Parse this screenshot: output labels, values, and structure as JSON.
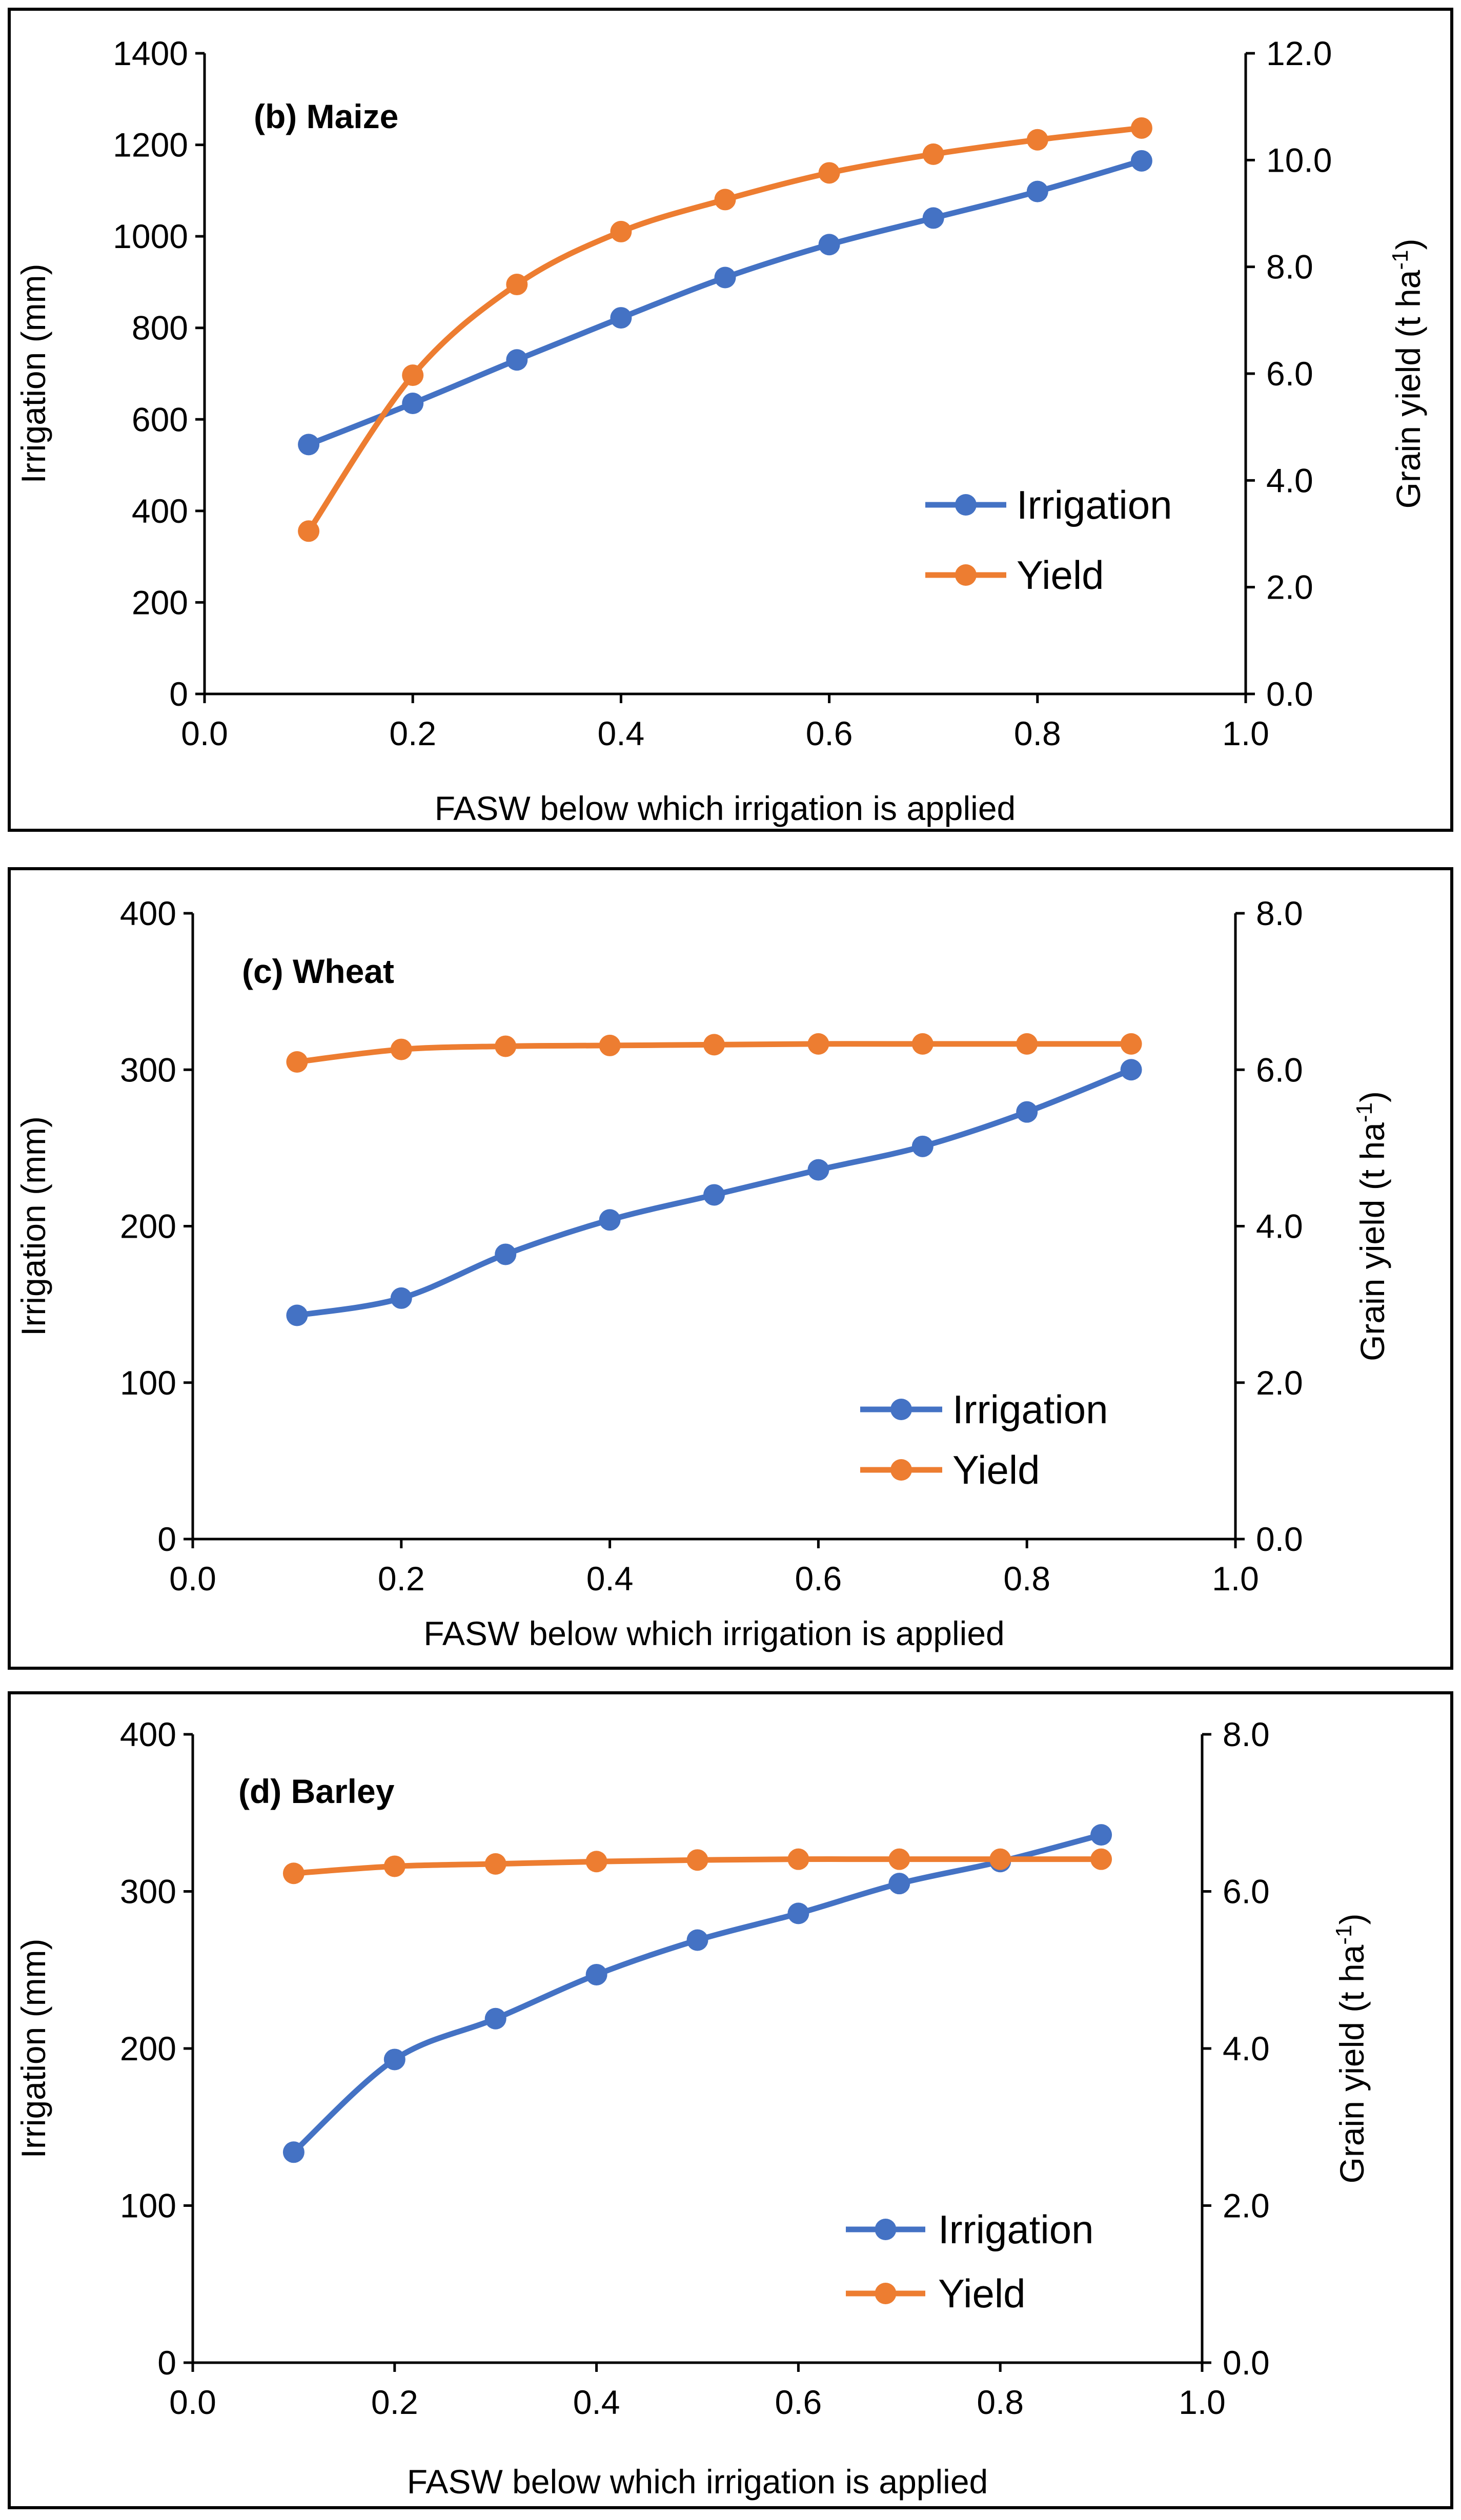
{
  "colors": {
    "irrigation": "#4472C4",
    "yield": "#ED7D31"
  },
  "chart_data": [
    {
      "type": "line",
      "title": "(b) Maize",
      "xlabel": "FASW below which irrigation is applied",
      "ylabel": "Irrigation (mm)",
      "y2label_main": "Grain yield (t ha",
      "y2label_sup": "-1",
      "y2label_close": ")",
      "xlim": [
        0,
        1
      ],
      "ylim": [
        0,
        1400
      ],
      "y2lim": [
        0,
        12
      ],
      "x_ticks": [
        "0.0",
        "0.2",
        "0.4",
        "0.6",
        "0.8",
        "1.0"
      ],
      "y_ticks": [
        "0",
        "200",
        "400",
        "600",
        "800",
        "1000",
        "1200",
        "1400"
      ],
      "y2_ticks": [
        "0.0",
        "2.0",
        "4.0",
        "6.0",
        "8.0",
        "10.0",
        "12.0"
      ],
      "x": [
        0.1,
        0.2,
        0.3,
        0.4,
        0.5,
        0.6,
        0.7,
        0.8,
        0.9
      ],
      "series": [
        {
          "name": "Irrigation",
          "axis": "left",
          "values": [
            545,
            635,
            730,
            822,
            910,
            982,
            1040,
            1098,
            1165
          ]
        },
        {
          "name": "Yield",
          "axis": "right",
          "values": [
            3.05,
            5.97,
            7.67,
            8.66,
            9.26,
            9.76,
            10.11,
            10.38,
            10.6
          ]
        }
      ]
    },
    {
      "type": "line",
      "title": "(c) Wheat",
      "xlabel": "FASW below which irrigation is applied",
      "ylabel": "Irrigation (mm)",
      "y2label_main": "Grain yield (t ha",
      "y2label_sup": "-1",
      "y2label_close": ")",
      "xlim": [
        0,
        1
      ],
      "ylim": [
        0,
        400
      ],
      "y2lim": [
        0,
        8
      ],
      "x_ticks": [
        "0.0",
        "0.2",
        "0.4",
        "0.6",
        "0.8",
        "1.0"
      ],
      "y_ticks": [
        "0",
        "100",
        "200",
        "300",
        "400"
      ],
      "y2_ticks": [
        "0.0",
        "2.0",
        "4.0",
        "6.0",
        "8.0"
      ],
      "x": [
        0.1,
        0.2,
        0.3,
        0.4,
        0.5,
        0.6,
        0.7,
        0.8,
        0.9
      ],
      "series": [
        {
          "name": "Irrigation",
          "axis": "left",
          "values": [
            143,
            154,
            182,
            204,
            220,
            236,
            251,
            273,
            300
          ]
        },
        {
          "name": "Yield",
          "axis": "right",
          "values": [
            6.1,
            6.26,
            6.3,
            6.31,
            6.32,
            6.33,
            6.33,
            6.33,
            6.33
          ]
        }
      ]
    },
    {
      "type": "line",
      "title": "(d) Barley",
      "xlabel": "FASW below which irrigation is applied",
      "ylabel": "Irrigation (mm)",
      "y2label_main": "Grain yield (t ha",
      "y2label_sup": "-1",
      "y2label_close": ")",
      "xlim": [
        0,
        1
      ],
      "ylim": [
        0,
        400
      ],
      "y2lim": [
        0,
        8
      ],
      "x_ticks": [
        "0.0",
        "0.2",
        "0.4",
        "0.6",
        "0.8",
        "1.0"
      ],
      "y_ticks": [
        "0",
        "100",
        "200",
        "300",
        "400"
      ],
      "y2_ticks": [
        "0.0",
        "2.0",
        "4.0",
        "6.0",
        "8.0"
      ],
      "x": [
        0.1,
        0.2,
        0.3,
        0.4,
        0.5,
        0.6,
        0.7,
        0.8,
        0.9
      ],
      "series": [
        {
          "name": "Irrigation",
          "axis": "left",
          "values": [
            134,
            193,
            219,
            247,
            269,
            286,
            305,
            319,
            336
          ]
        },
        {
          "name": "Yield",
          "axis": "right",
          "values": [
            6.23,
            6.32,
            6.35,
            6.38,
            6.4,
            6.41,
            6.41,
            6.41,
            6.41
          ]
        }
      ]
    }
  ]
}
